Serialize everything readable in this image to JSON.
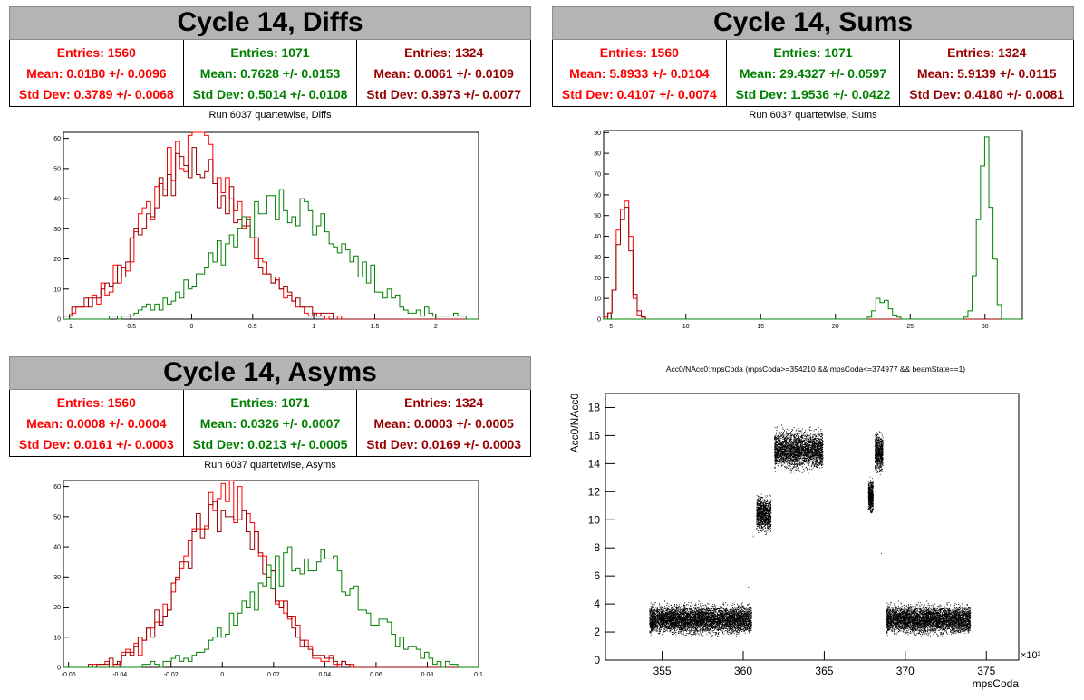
{
  "colors": {
    "red": "#ff0000",
    "green": "#008000",
    "darkred": "#990000",
    "banner": "#b4b4b4"
  },
  "panels": [
    {
      "id": "diffs",
      "title": "Cycle 14, Diffs",
      "subtitle": "Run 6037 quartetwise, Diffs",
      "stats": [
        {
          "entries": "Entries: 1560",
          "mean": "Mean: 0.0180 +/- 0.0096",
          "std": "Std Dev: 0.3789 +/- 0.0068",
          "color": "#ff0000"
        },
        {
          "entries": "Entries: 1071",
          "mean": "Mean: 0.7628 +/- 0.0153",
          "std": "Std Dev: 0.5014 +/- 0.0108",
          "color": "#008000"
        },
        {
          "entries": "Entries: 1324",
          "mean": "Mean: 0.0061 +/- 0.0109",
          "std": "Std Dev: 0.3973 +/- 0.0077",
          "color": "#990000"
        }
      ]
    },
    {
      "id": "sums",
      "title": "Cycle 14, Sums",
      "subtitle": "Run 6037 quartetwise, Sums",
      "stats": [
        {
          "entries": "Entries: 1560",
          "mean": "Mean: 5.8933 +/- 0.0104",
          "std": "Std Dev: 0.4107 +/- 0.0074",
          "color": "#ff0000"
        },
        {
          "entries": "Entries: 1071",
          "mean": "Mean: 29.4327 +/- 0.0597",
          "std": "Std Dev: 1.9536 +/- 0.0422",
          "color": "#008000"
        },
        {
          "entries": "Entries: 1324",
          "mean": "Mean: 5.9139 +/- 0.0115",
          "std": "Std Dev: 0.4180 +/- 0.0081",
          "color": "#990000"
        }
      ]
    },
    {
      "id": "asyms",
      "title": "Cycle 14, Asyms",
      "subtitle": "Run 6037 quartetwise, Asyms",
      "stats": [
        {
          "entries": "Entries: 1560",
          "mean": "Mean: 0.0008 +/- 0.0004",
          "std": "Std Dev: 0.0161 +/- 0.0003",
          "color": "#ff0000"
        },
        {
          "entries": "Entries: 1071",
          "mean": "Mean: 0.0326 +/- 0.0007",
          "std": "Std Dev: 0.0213 +/- 0.0005",
          "color": "#008000"
        },
        {
          "entries": "Entries: 1324",
          "mean": "Mean: 0.0003 +/- 0.0005",
          "std": "Std Dev: 0.0169 +/- 0.0003",
          "color": "#990000"
        }
      ]
    }
  ],
  "chart_data": [
    {
      "type": "histogram",
      "id": "diffs",
      "title": "",
      "xlim": [
        -1.05,
        2.35
      ],
      "ylim": [
        0,
        62
      ],
      "xticks": [
        -1,
        -0.5,
        0,
        0.5,
        1,
        1.5,
        2
      ],
      "yticks": [
        0,
        10,
        20,
        30,
        40,
        50,
        60
      ],
      "series": [
        {
          "color": "#ff0000",
          "mean": 0.018,
          "sd": 0.3789,
          "peak": 58
        },
        {
          "color": "#990000",
          "mean": 0.006,
          "sd": 0.3973,
          "peak": 52
        },
        {
          "color": "#008000",
          "mean": 0.763,
          "sd": 0.5014,
          "peak": 38
        }
      ]
    },
    {
      "type": "histogram",
      "id": "sums",
      "title": "",
      "xlim": [
        4.5,
        32.5
      ],
      "ylim": [
        0,
        91
      ],
      "xticks": [
        5,
        10,
        15,
        20,
        25,
        30
      ],
      "yticks": [
        0,
        10,
        20,
        30,
        40,
        50,
        60,
        70,
        80,
        90
      ],
      "series": [
        {
          "color": "#ff0000",
          "mean": 5.893,
          "sd": 0.41,
          "peak": 60
        },
        {
          "color": "#990000",
          "mean": 5.914,
          "sd": 0.418,
          "peak": 56
        },
        {
          "color": "#008000",
          "mean": 30.0,
          "sd": 0.45,
          "peak": 84,
          "extra": {
            "mean": 23.2,
            "sd": 0.4,
            "peak": 12
          }
        }
      ]
    },
    {
      "type": "histogram",
      "id": "asyms",
      "title": "",
      "xlim": [
        -0.062,
        0.1
      ],
      "ylim": [
        0,
        62
      ],
      "xticks": [
        -0.06,
        -0.04,
        -0.02,
        0,
        0.02,
        0.04,
        0.06,
        0.08,
        0.1
      ],
      "yticks": [
        0,
        10,
        20,
        30,
        40,
        50,
        60
      ],
      "series": [
        {
          "color": "#ff0000",
          "mean": 0.0008,
          "sd": 0.0161,
          "peak": 57
        },
        {
          "color": "#990000",
          "mean": 0.0003,
          "sd": 0.0169,
          "peak": 52
        },
        {
          "color": "#008000",
          "mean": 0.0326,
          "sd": 0.0213,
          "peak": 37
        }
      ]
    },
    {
      "type": "scatter",
      "id": "acc0",
      "title": "Acc0/NAcc0:mpsCoda (mpsCoda>=354210 && mpsCoda<=374977 && beamState==1)",
      "xlabel": "mpsCoda",
      "ylabel": "Acc0/NAcc0",
      "xscale_label": "×10³",
      "xlim": [
        351.5,
        377
      ],
      "ylim": [
        0,
        19
      ],
      "xticks": [
        355,
        360,
        365,
        370,
        375
      ],
      "yticks": [
        0,
        2,
        4,
        6,
        8,
        10,
        12,
        14,
        16,
        18
      ],
      "clusters": [
        {
          "x": [
            354.2,
            360.5
          ],
          "y": 2.9,
          "spread": 0.45
        },
        {
          "x": [
            360.8,
            361.7
          ],
          "y": 10.4,
          "spread": 0.55
        },
        {
          "x": [
            361.9,
            364.9
          ],
          "y": 15.0,
          "spread": 0.6
        },
        {
          "x": [
            367.7,
            368.0
          ],
          "y": 11.7,
          "spread": 0.5
        },
        {
          "x": [
            368.1,
            368.6
          ],
          "y": 14.8,
          "spread": 0.6
        },
        {
          "x": [
            368.8,
            374.0
          ],
          "y": 2.9,
          "spread": 0.45
        }
      ]
    }
  ]
}
